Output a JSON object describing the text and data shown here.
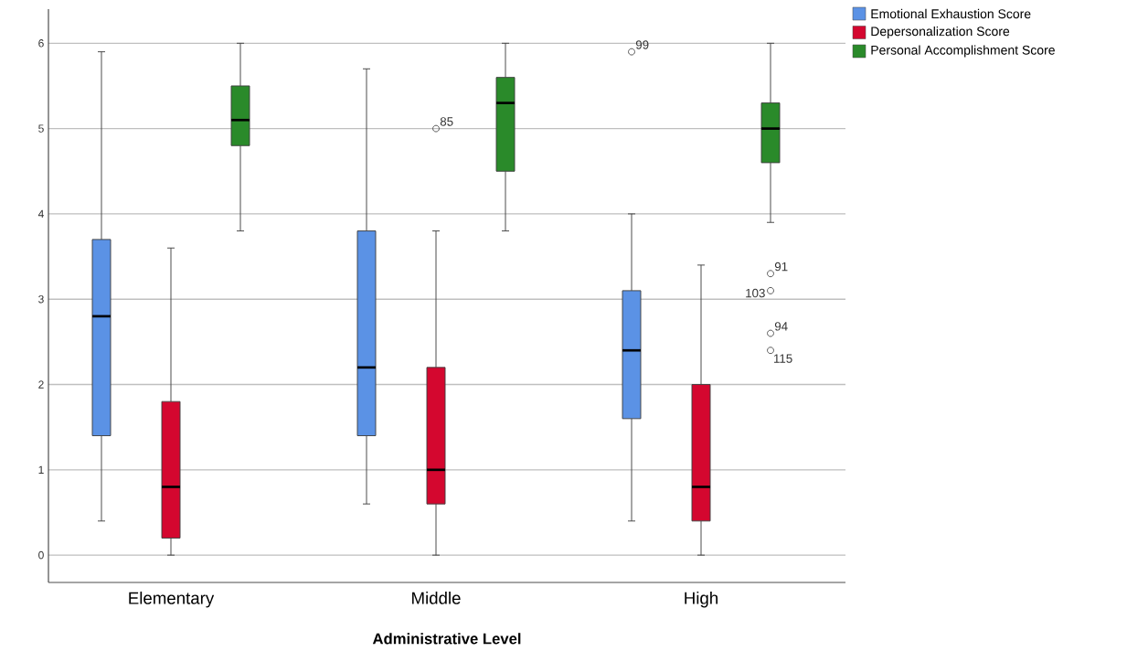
{
  "chart_data": {
    "type": "box",
    "xlabel": "Administrative Level",
    "categories": [
      "Elementary",
      "Middle",
      "High"
    ],
    "series": [
      {
        "name": "Emotional Exhaustion Score",
        "color": "#5b92e5",
        "boxes": [
          {
            "low": 0.4,
            "q1": 1.4,
            "median": 2.8,
            "q3": 3.7,
            "high": 5.9
          },
          {
            "low": 0.6,
            "q1": 1.4,
            "median": 2.2,
            "q3": 3.8,
            "high": 5.7
          },
          {
            "low": 0.4,
            "q1": 1.6,
            "median": 2.4,
            "q3": 3.1,
            "high": 4.0,
            "outliers": [
              5.9
            ]
          }
        ]
      },
      {
        "name": "Depersonalization Score",
        "color": "#d4072f",
        "boxes": [
          {
            "low": 0.0,
            "q1": 0.2,
            "median": 0.8,
            "q3": 1.8,
            "high": 3.6
          },
          {
            "low": 0.0,
            "q1": 0.6,
            "median": 1.0,
            "q3": 2.2,
            "high": 3.8,
            "outliers": [
              5.0
            ]
          },
          {
            "low": 0.0,
            "q1": 0.4,
            "median": 0.8,
            "q3": 2.0,
            "high": 3.4
          }
        ]
      },
      {
        "name": "Personal Accomplishment Score",
        "color": "#2a8a2a",
        "boxes": [
          {
            "low": 3.8,
            "q1": 4.8,
            "median": 5.1,
            "q3": 5.5,
            "high": 6.0
          },
          {
            "low": 3.8,
            "q1": 4.5,
            "median": 5.3,
            "q3": 5.6,
            "high": 6.0
          },
          {
            "low": 3.9,
            "q1": 4.6,
            "median": 5.0,
            "q3": 5.3,
            "high": 6.0,
            "outliers": [
              3.3,
              3.1,
              2.6,
              2.4
            ]
          }
        ]
      }
    ],
    "ylim": [
      -0.32,
      6.4
    ],
    "yticks": [
      0,
      1,
      2,
      3,
      4,
      5,
      6
    ],
    "grid": "y",
    "legend": "top right",
    "annotations": [
      "99",
      "85",
      "91",
      "103",
      "94",
      "115"
    ]
  }
}
